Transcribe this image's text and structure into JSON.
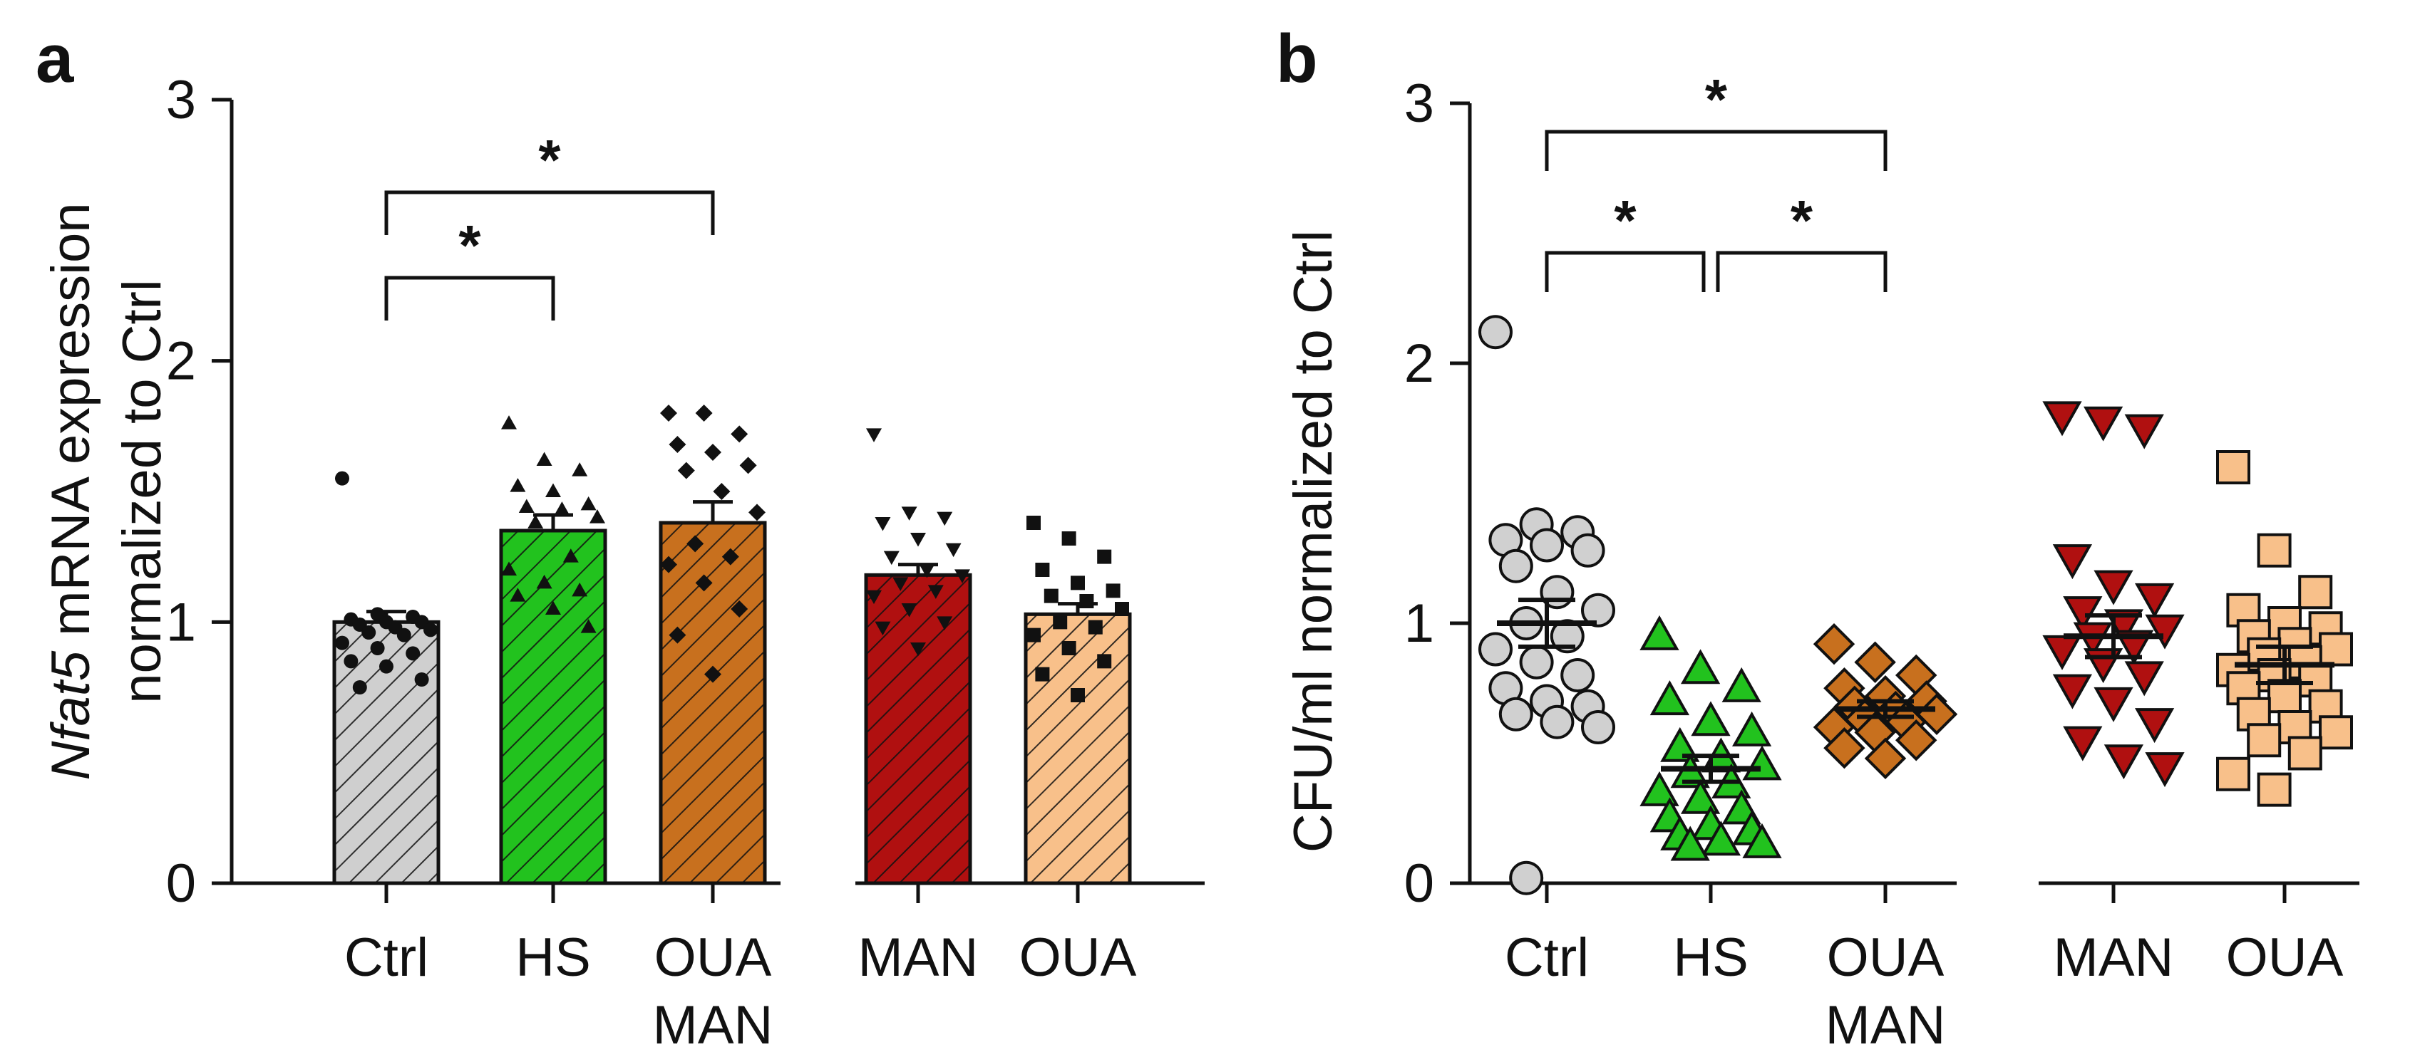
{
  "chart_data": [
    {
      "panel_label": "a",
      "type": "bar",
      "ylabel_italic": "Nfat5",
      "ylabel_rest": " mRNA expression",
      "ylabel_line2": "normalized to Ctrl",
      "ylim": [
        0,
        3
      ],
      "yticks": [
        "0",
        "1",
        "2",
        "3"
      ],
      "groups": [
        {
          "label": [
            "Ctrl"
          ],
          "mean": 1.0,
          "sem": 0.04,
          "color": "#cfcfcf",
          "marker": "circle",
          "points": [
            1.55,
            1.03,
            1.02,
            1.01,
            1.0,
            1.0,
            0.99,
            0.98,
            0.97,
            0.96,
            0.95,
            0.92,
            0.9,
            0.88,
            0.85,
            0.83,
            0.78,
            0.75
          ]
        },
        {
          "label": [
            "HS"
          ],
          "mean": 1.35,
          "sem": 0.06,
          "color": "#22c21e",
          "marker": "triangle-up",
          "points": [
            1.76,
            1.62,
            1.58,
            1.52,
            1.5,
            1.45,
            1.44,
            1.43,
            1.4,
            1.38,
            1.25,
            1.2,
            1.15,
            1.12,
            1.1,
            1.05,
            0.98
          ]
        },
        {
          "label": [
            "OUA",
            "MAN"
          ],
          "mean": 1.38,
          "sem": 0.08,
          "color": "#c8701e",
          "marker": "diamond",
          "points": [
            1.8,
            1.8,
            1.72,
            1.68,
            1.65,
            1.6,
            1.58,
            1.5,
            1.42,
            1.3,
            1.25,
            1.22,
            1.15,
            1.05,
            0.95,
            0.8
          ]
        },
        {
          "label": [
            "MAN"
          ],
          "mean": 1.18,
          "sem": 0.04,
          "color": "#b01010",
          "marker": "triangle-down",
          "points": [
            1.72,
            1.42,
            1.4,
            1.38,
            1.32,
            1.28,
            1.25,
            1.2,
            1.18,
            1.15,
            1.12,
            1.1,
            1.05,
            1.0,
            0.98,
            0.9
          ]
        },
        {
          "label": [
            "OUA"
          ],
          "mean": 1.03,
          "sem": 0.04,
          "color": "#f8c08a",
          "marker": "square",
          "points": [
            1.38,
            1.32,
            1.25,
            1.2,
            1.15,
            1.12,
            1.1,
            1.08,
            1.05,
            1.0,
            0.98,
            0.95,
            0.9,
            0.85,
            0.8,
            0.72
          ]
        }
      ],
      "significance": [
        {
          "from": 0,
          "to": 1,
          "text": "*"
        },
        {
          "from": 0,
          "to": 2,
          "text": "*"
        }
      ]
    },
    {
      "panel_label": "b",
      "type": "scatter",
      "ylabel": "CFU/ml normalized to Ctrl",
      "ylim": [
        0,
        3
      ],
      "yticks": [
        "0",
        "1",
        "2",
        "3"
      ],
      "groups": [
        {
          "label": [
            "Ctrl"
          ],
          "mean": 1.0,
          "sem": 0.09,
          "color": "#d0d0d0",
          "marker": "circle",
          "points": [
            2.12,
            1.38,
            1.35,
            1.32,
            1.3,
            1.28,
            1.22,
            1.12,
            1.05,
            1.0,
            0.95,
            0.9,
            0.85,
            0.8,
            0.75,
            0.7,
            0.68,
            0.65,
            0.62,
            0.6,
            0.02
          ]
        },
        {
          "label": [
            "HS"
          ],
          "mean": 0.44,
          "sem": 0.05,
          "color": "#22c21e",
          "marker": "triangle-up",
          "points": [
            0.95,
            0.82,
            0.75,
            0.7,
            0.62,
            0.58,
            0.52,
            0.48,
            0.45,
            0.42,
            0.38,
            0.35,
            0.32,
            0.28,
            0.25,
            0.22,
            0.2,
            0.18,
            0.16,
            0.15,
            0.14
          ]
        },
        {
          "label": [
            "OUA",
            "MAN"
          ],
          "mean": 0.67,
          "sem": 0.03,
          "color": "#c8701e",
          "marker": "diamond",
          "points": [
            0.92,
            0.85,
            0.8,
            0.75,
            0.72,
            0.7,
            0.68,
            0.66,
            0.65,
            0.63,
            0.62,
            0.6,
            0.58,
            0.55,
            0.52,
            0.48
          ]
        },
        {
          "label": [
            "MAN"
          ],
          "mean": 0.95,
          "sem": 0.08,
          "color": "#b01010",
          "marker": "triangle-down",
          "points": [
            1.8,
            1.78,
            1.75,
            1.25,
            1.15,
            1.1,
            1.05,
            1.0,
            0.98,
            0.95,
            0.92,
            0.9,
            0.85,
            0.8,
            0.75,
            0.7,
            0.62,
            0.55,
            0.48,
            0.45
          ]
        },
        {
          "label": [
            "OUA"
          ],
          "mean": 0.84,
          "sem": 0.07,
          "color": "#f8c08a",
          "marker": "square",
          "points": [
            1.6,
            1.28,
            1.12,
            1.05,
            1.0,
            0.98,
            0.95,
            0.92,
            0.9,
            0.88,
            0.85,
            0.82,
            0.8,
            0.78,
            0.75,
            0.72,
            0.68,
            0.65,
            0.6,
            0.58,
            0.55,
            0.5,
            0.42,
            0.36
          ]
        }
      ],
      "significance": [
        {
          "from": 0,
          "to": 1,
          "text": "*"
        },
        {
          "from": 1,
          "to": 2,
          "text": "*"
        },
        {
          "from": 0,
          "to": 2,
          "text": "*"
        }
      ]
    }
  ]
}
